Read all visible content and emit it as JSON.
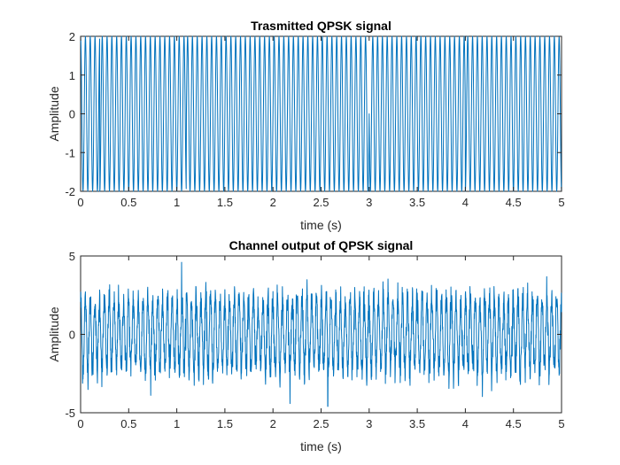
{
  "chart_data": [
    {
      "type": "line",
      "title": "Trasmitted QPSK signal",
      "xlabel": "time (s)",
      "ylabel": "Amplitude",
      "xlim": [
        0,
        5
      ],
      "ylim": [
        -2,
        2
      ],
      "xticks": [
        0,
        0.5,
        1,
        1.5,
        2,
        2.5,
        3,
        3.5,
        4,
        4.5,
        5
      ],
      "xtick_labels": [
        "0",
        "0.5",
        "1",
        "1.5",
        "2",
        "2.5",
        "3",
        "3.5",
        "4",
        "4.5",
        "5"
      ],
      "yticks": [
        -2,
        -1,
        0,
        1,
        2
      ],
      "ytick_labels": [
        "-2",
        "-1",
        "0",
        "1",
        "2"
      ],
      "grid": false,
      "color": "#0072BD",
      "series": [
        {
          "signal": "QPSK carrier, amplitude ±2, ~20 cycles per second, visible phase transitions near t=0.2, 1.1, 3.0, 4.0",
          "amplitude": 2,
          "carrier_cycles_per_s": 20,
          "phase_change_times": [
            0.2,
            1.1,
            3.0,
            4.0
          ]
        }
      ]
    },
    {
      "type": "line",
      "title": "Channel output of QPSK signal",
      "xlabel": "time (s)",
      "ylabel": "Amplitude",
      "xlim": [
        0,
        5
      ],
      "ylim": [
        -5,
        5
      ],
      "xticks": [
        0,
        0.5,
        1,
        1.5,
        2,
        2.5,
        3,
        3.5,
        4,
        4.5,
        5
      ],
      "xtick_labels": [
        "0",
        "0.5",
        "1",
        "1.5",
        "2",
        "2.5",
        "3",
        "3.5",
        "4",
        "4.5",
        "5"
      ],
      "yticks": [
        -5,
        0,
        5
      ],
      "ytick_labels": [
        "-5",
        "0",
        "5"
      ],
      "grid": false,
      "color": "#0072BD",
      "series": [
        {
          "signal": "noisy QPSK channel output, typical peaks ±3, max ≈ 4.6 near t=1.05, min ≈ -4.6 near t=2.57",
          "amplitude": 3,
          "carrier_cycles_per_s": 20,
          "peak_max": 4.6,
          "peak_max_t": 1.05,
          "peak_min": -4.6,
          "peak_min_t": 2.57
        }
      ]
    }
  ]
}
